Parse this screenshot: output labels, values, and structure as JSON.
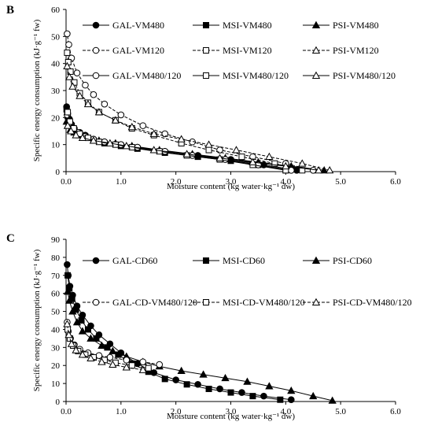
{
  "panels": [
    {
      "letter": "B",
      "chart_data": {
        "type": "line",
        "xlabel": "Moisture content (kg water·kg⁻¹ dw)",
        "ylabel": "Specific energy consumption (kJ·g⁻¹ fw)",
        "xlim": [
          0,
          6
        ],
        "ylim": [
          0,
          60
        ],
        "xticks": [
          "0.0",
          "1.0",
          "2.0",
          "3.0",
          "4.0",
          "5.0",
          "6.0"
        ],
        "yticks": [
          "0",
          "10",
          "20",
          "30",
          "40",
          "50",
          "60"
        ],
        "legend": [
          [
            "GAL-VM480",
            "MSI-VM480",
            "PSI-VM480"
          ],
          [
            "GAL-VM120",
            "MSI-VM120",
            "PSI-VM120"
          ],
          [
            "GAL-VM480/120",
            "MSI-VM480/120",
            "PSI-VM480/120"
          ]
        ],
        "series": [
          {
            "name": "GAL-VM480",
            "marker": "circle",
            "fill": "solid",
            "dash": "solid",
            "x": [
              4.2,
              3.6,
              3.0,
              2.4,
              1.8,
              1.3,
              1.0,
              0.7,
              0.5,
              0.35,
              0.25,
              0.15,
              0.1,
              0.06,
              0.03,
              0.01
            ],
            "y": [
              0.5,
              2.5,
              4.5,
              6.0,
              7.5,
              9.0,
              10.0,
              11.0,
              12.0,
              13.5,
              14.5,
              16.0,
              17.5,
              19.5,
              21.5,
              24.0
            ]
          },
          {
            "name": "MSI-VM480",
            "marker": "square",
            "fill": "solid",
            "dash": "solid",
            "x": [
              4.0,
              3.5,
              3.0,
              2.4,
              1.8,
              1.3,
              1.0,
              0.7,
              0.5,
              0.35,
              0.2,
              0.12,
              0.07,
              0.03,
              0.01
            ],
            "y": [
              0.5,
              2.5,
              4.0,
              5.5,
              7.0,
              8.5,
              9.5,
              10.5,
              11.5,
              13.0,
              14.5,
              16.0,
              18.0,
              20.5,
              23.0
            ]
          },
          {
            "name": "PSI-VM480",
            "marker": "triangle",
            "fill": "solid",
            "dash": "solid",
            "x": [
              4.7,
              4.1,
              3.5,
              2.9,
              2.3,
              1.7,
              1.2,
              0.9,
              0.6,
              0.4,
              0.25,
              0.15,
              0.08,
              0.03,
              0.01
            ],
            "y": [
              0.5,
              2.0,
              3.5,
              5.0,
              6.5,
              8.0,
              9.5,
              10.5,
              11.5,
              12.5,
              13.5,
              14.5,
              15.5,
              17.0,
              18.5
            ]
          },
          {
            "name": "GAL-VM120",
            "marker": "circle",
            "fill": "open",
            "dash": "dashed",
            "x": [
              4.5,
              4.0,
              3.4,
              2.8,
              2.3,
              1.8,
              1.4,
              1.0,
              0.7,
              0.5,
              0.35,
              0.2,
              0.1,
              0.05,
              0.02
            ],
            "y": [
              0.5,
              3.0,
              5.5,
              8.0,
              11.0,
              14.0,
              17.0,
              21.0,
              25.0,
              28.5,
              32.0,
              36.5,
              42.0,
              47.0,
              51.0
            ]
          },
          {
            "name": "MSI-VM120",
            "marker": "square",
            "fill": "open",
            "dash": "dashed",
            "x": [
              4.3,
              3.8,
              3.2,
              2.6,
              2.1,
              1.6,
              1.2,
              0.9,
              0.6,
              0.4,
              0.25,
              0.15,
              0.08,
              0.04,
              0.02
            ],
            "y": [
              0.5,
              3.0,
              5.5,
              8.0,
              10.5,
              13.5,
              16.0,
              19.0,
              22.0,
              25.5,
              29.0,
              33.0,
              37.0,
              40.5,
              44.0
            ]
          },
          {
            "name": "PSI-VM120",
            "marker": "triangle",
            "fill": "open",
            "dash": "dashed",
            "x": [
              4.8,
              4.3,
              3.7,
              3.1,
              2.6,
              2.1,
              1.6,
              1.2,
              0.9,
              0.6,
              0.4,
              0.25,
              0.12,
              0.06,
              0.02
            ],
            "y": [
              0.5,
              3.0,
              5.5,
              8.0,
              10.0,
              12.0,
              14.0,
              16.5,
              19.0,
              22.0,
              25.0,
              28.0,
              31.5,
              35.0,
              39.0
            ]
          },
          {
            "name": "GAL-VM480/120",
            "marker": "circle",
            "fill": "open",
            "dash": "solid",
            "x": [
              4.1,
              3.5,
              2.9,
              2.3,
              1.8,
              1.3,
              1.0,
              0.7,
              0.5,
              0.35,
              0.22,
              0.12,
              0.06,
              0.02
            ],
            "y": [
              0.5,
              2.5,
              4.5,
              6.0,
              7.5,
              9.0,
              10.0,
              11.0,
              12.0,
              13.0,
              14.5,
              16.0,
              18.0,
              21.0
            ]
          },
          {
            "name": "MSI-VM480/120",
            "marker": "square",
            "fill": "open",
            "dash": "solid",
            "x": [
              4.0,
              3.4,
              2.8,
              2.2,
              1.7,
              1.2,
              0.9,
              0.6,
              0.4,
              0.25,
              0.14,
              0.07,
              0.03
            ],
            "y": [
              0.5,
              2.5,
              4.5,
              6.0,
              7.5,
              9.0,
              10.0,
              11.0,
              12.5,
              14.0,
              16.0,
              18.5,
              22.0
            ]
          },
          {
            "name": "PSI-VM480/120",
            "marker": "triangle",
            "fill": "open",
            "dash": "solid",
            "x": [
              4.6,
              4.0,
              3.4,
              2.8,
              2.2,
              1.6,
              1.1,
              0.8,
              0.5,
              0.3,
              0.18,
              0.09,
              0.03
            ],
            "y": [
              0.5,
              2.0,
              3.5,
              5.0,
              6.5,
              8.0,
              9.5,
              10.5,
              11.5,
              12.5,
              13.5,
              15.0,
              17.0
            ]
          }
        ]
      }
    },
    {
      "letter": "C",
      "chart_data": {
        "type": "line",
        "xlabel": "Moisture content (kg water·kg⁻¹ dw)",
        "ylabel": "Specific energy consumption (kJ·g⁻¹ fw)",
        "xlim": [
          0,
          6
        ],
        "ylim": [
          0,
          90
        ],
        "xticks": [
          "0.0",
          "1.0",
          "2.0",
          "3.0",
          "4.0",
          "5.0",
          "6.0"
        ],
        "yticks": [
          "0",
          "10",
          "20",
          "30",
          "40",
          "50",
          "60",
          "70",
          "80",
          "90"
        ],
        "legend": [
          [
            "GAL-CD60",
            "MSI-CD60",
            "PSI-CD60"
          ],
          [
            "GAL-CD-VM480/120",
            "MSI-CD-VM480/120",
            "PSI-CD-VM480/120"
          ]
        ],
        "series": [
          {
            "name": "GAL-CD60",
            "marker": "circle",
            "fill": "solid",
            "dash": "solid",
            "x": [
              4.1,
              3.6,
              3.2,
              2.8,
              2.4,
              2.0,
              1.6,
              1.3,
              1.0,
              0.8,
              0.6,
              0.45,
              0.3,
              0.2,
              0.12,
              0.07,
              0.04,
              0.02
            ],
            "y": [
              1.0,
              3.0,
              5.0,
              7.0,
              9.5,
              12.0,
              16.0,
              21.0,
              27.0,
              32.0,
              37.0,
              42.0,
              48.0,
              53.0,
              59.0,
              64.0,
              70.0,
              76.0
            ]
          },
          {
            "name": "MSI-CD60",
            "marker": "square",
            "fill": "solid",
            "dash": "solid",
            "x": [
              3.9,
              3.4,
              3.0,
              2.6,
              2.2,
              1.8,
              1.5,
              1.2,
              0.95,
              0.75,
              0.55,
              0.4,
              0.28,
              0.18,
              0.11,
              0.06,
              0.03
            ],
            "y": [
              1.0,
              3.0,
              5.0,
              7.0,
              9.5,
              12.5,
              16.5,
              21.0,
              26.0,
              30.0,
              35.0,
              40.0,
              45.0,
              51.0,
              57.0,
              63.0,
              70.0
            ]
          },
          {
            "name": "PSI-CD60",
            "marker": "triangle",
            "fill": "solid",
            "dash": "solid",
            "x": [
              4.85,
              4.5,
              4.1,
              3.7,
              3.3,
              2.9,
              2.5,
              2.1,
              1.7,
              1.4,
              1.1,
              0.85,
              0.65,
              0.45,
              0.3,
              0.2,
              0.12,
              0.06,
              0.03
            ],
            "y": [
              0.5,
              3.0,
              6.0,
              8.5,
              11.0,
              13.0,
              15.0,
              17.0,
              19.5,
              22.0,
              25.0,
              28.0,
              31.0,
              35.0,
              39.0,
              44.0,
              50.0,
              56.0,
              61.0
            ]
          },
          {
            "name": "GAL-CD-VM480/120",
            "marker": "circle",
            "fill": "open",
            "dash": "dashed",
            "x": [
              1.7,
              1.4,
              1.1,
              0.8,
              0.6,
              0.4,
              0.25,
              0.15,
              0.08,
              0.04,
              0.02
            ],
            "y": [
              20.5,
              22.0,
              23.0,
              24.5,
              25.5,
              27.0,
              29.0,
              31.5,
              35.0,
              39.0,
              44.0
            ]
          },
          {
            "name": "MSI-CD-VM480/120",
            "marker": "square",
            "fill": "open",
            "dash": "dashed",
            "x": [
              1.5,
              1.2,
              0.9,
              0.7,
              0.5,
              0.35,
              0.22,
              0.13,
              0.07,
              0.03
            ],
            "y": [
              18.5,
              20.0,
              21.5,
              23.0,
              24.5,
              26.0,
              28.0,
              31.0,
              35.0,
              40.0
            ]
          },
          {
            "name": "PSI-CD-VM480/120",
            "marker": "triangle",
            "fill": "open",
            "dash": "dashed",
            "x": [
              1.4,
              1.1,
              0.85,
              0.65,
              0.45,
              0.3,
              0.18,
              0.1,
              0.05,
              0.02
            ],
            "y": [
              17.5,
              19.0,
              20.5,
              22.0,
              24.0,
              26.0,
              28.5,
              32.0,
              37.0,
              43.0
            ]
          }
        ]
      }
    }
  ]
}
